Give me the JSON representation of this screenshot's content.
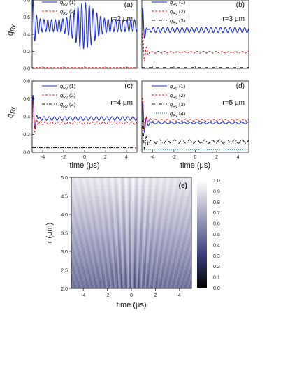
{
  "chart_data": [
    {
      "type": "line",
      "panel_label": "(a)",
      "annotation": "r=2 μm",
      "ylabel": "q_Ry",
      "ylim": [
        0,
        0.8
      ],
      "yticks": [
        "0.0",
        "0.2",
        "0.4",
        "0.6",
        "0.8"
      ],
      "xlim": [
        -5,
        5
      ],
      "series": [
        {
          "name": "q_Ry (1)",
          "color": "#1f2fd0",
          "dash": "",
          "osc": {
            "mean": 0.5,
            "amp": 0.07,
            "period": 0.36,
            "env": "beat",
            "env_amp": 0.2,
            "env_center": 0.0,
            "env_width": 1.2
          }
        },
        {
          "name": "q_Ry (2)",
          "color": "#e02020",
          "dash": "3,2",
          "values": {
            "const": 0.01
          }
        }
      ]
    },
    {
      "type": "line",
      "panel_label": "(b)",
      "annotation": "r=3 μm",
      "ylim": [
        0,
        0.8
      ],
      "xlim": [
        -5,
        5
      ],
      "series": [
        {
          "name": "q_Ry (1)",
          "color": "#1f2fd0",
          "dash": "",
          "osc": {
            "mean": 0.45,
            "amp": 0.03,
            "period": 0.45,
            "env": "flat"
          }
        },
        {
          "name": "q_Ry (2)",
          "color": "#e02020",
          "dash": "3,2",
          "osc": {
            "mean": 0.19,
            "amp": 0.01,
            "period": 0.6,
            "env": "flat"
          }
        },
        {
          "name": "q_Ry (3)",
          "color": "#111111",
          "dash": "5,2,1,2",
          "values": {
            "const": 0.01
          }
        }
      ]
    },
    {
      "type": "line",
      "panel_label": "(c)",
      "annotation": "r=4 μm",
      "ylabel": "q_Ry",
      "ylim": [
        0,
        0.8
      ],
      "yticks": [
        "0.0",
        "0.2",
        "0.4",
        "0.6",
        "0.8"
      ],
      "xlim": [
        -5,
        5
      ],
      "xticks": [
        "-4",
        "-2",
        "0",
        "2",
        "4"
      ],
      "xlabel": "time (μs)",
      "series": [
        {
          "name": "q_Ry (1)",
          "color": "#1f2fd0",
          "dash": "",
          "osc": {
            "mean": 0.38,
            "amp": 0.02,
            "period": 0.5,
            "env": "flat"
          }
        },
        {
          "name": "q_Ry (2)",
          "color": "#e02020",
          "dash": "3,2",
          "osc": {
            "mean": 0.33,
            "amp": 0.015,
            "period": 0.55,
            "env": "flat"
          }
        },
        {
          "name": "q_Ry (3)",
          "color": "#111111",
          "dash": "5,2,1,2",
          "values": {
            "const": 0.05
          }
        }
      ]
    },
    {
      "type": "line",
      "panel_label": "(d)",
      "annotation": "r=5 μm",
      "ylim": [
        0,
        0.8
      ],
      "xlim": [
        -5,
        5
      ],
      "xticks": [
        "-4",
        "-2",
        "0",
        "2",
        "4"
      ],
      "xlabel": "time (μs)",
      "series": [
        {
          "name": "q_Ry (1)",
          "color": "#1f2fd0",
          "dash": "",
          "osc": {
            "mean": 0.33,
            "amp": 0.01,
            "period": 0.6,
            "env": "flat"
          }
        },
        {
          "name": "q_Ry (2)",
          "color": "#e02020",
          "dash": "3,2",
          "osc": {
            "mean": 0.36,
            "amp": 0.01,
            "period": 0.55,
            "env": "flat"
          }
        },
        {
          "name": "q_Ry (3)",
          "color": "#111111",
          "dash": "5,2,1,2",
          "osc": {
            "mean": 0.12,
            "amp": 0.02,
            "period": 0.7,
            "env": "flat"
          }
        },
        {
          "name": "q_Ry (4)",
          "color": "#0a9aa8",
          "dash": "1,2",
          "values": {
            "const": 0.03
          }
        }
      ]
    },
    {
      "type": "heatmap",
      "panel_label": "(e)",
      "xlabel": "time (μs)",
      "ylabel": "r (μm)",
      "xlim": [
        -5,
        5
      ],
      "ylim": [
        2.0,
        5.0
      ],
      "xticks": [
        "-4",
        "-2",
        "0",
        "2",
        "4"
      ],
      "yticks": [
        "2.0",
        "2.5",
        "3.0",
        "3.5",
        "4.0",
        "4.5",
        "5.0"
      ],
      "colorbar": {
        "min": 0.0,
        "max": 1.0,
        "ticks": [
          "0.0",
          "0.1",
          "0.2",
          "0.3",
          "0.4",
          "0.5",
          "0.6",
          "0.7",
          "0.8",
          "0.9",
          "1.0"
        ],
        "low_color": "#000000",
        "high_color": "#ffffff",
        "mid_color": "#3a3c78"
      }
    }
  ]
}
